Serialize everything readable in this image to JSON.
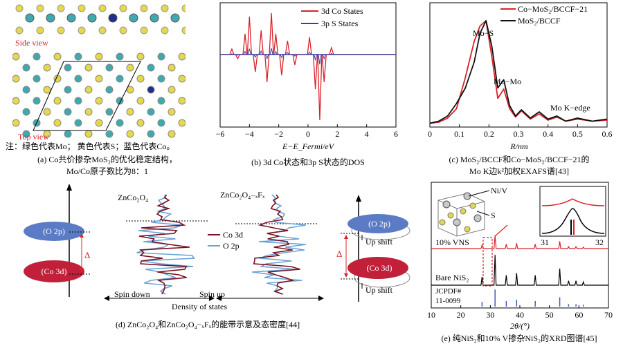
{
  "panel_a": {
    "side_label": "Side view",
    "top_label": "Top view",
    "note": "注：绿色代表Mo；   黄色代表S；蓝色代表Co。",
    "caption_line1": "(a) Co共价掺杂MoS₂的优化稳定结构，",
    "caption_line2": "Mo/Co原子数比为8：1"
  },
  "panel_b": {
    "caption": "(b) 3d Co状态和3p S状态的DOS",
    "xlabel": "E−E_Fermi/eV",
    "legend": [
      "3d Co States",
      "3p S States"
    ],
    "xticks": [
      "−6",
      "−4",
      "−2",
      "0",
      "2",
      "4",
      "6"
    ]
  },
  "panel_c": {
    "caption_line1": "(c) MoS₂/BCCF和Co−MoS₂/BCCF−21的",
    "caption_line2": "Mo K边k²加权EXAFS谱[43]",
    "legend": [
      "Co−MoS₂/BCCF−21",
      "MoS₂/BCCF"
    ],
    "ann_mos": "Mo−S",
    "ann_momo": "Mo−Mo",
    "ann_edge": "Mo K−edge",
    "xlabel": "R/nm",
    "xticks": [
      "0",
      "0.1",
      "0.2",
      "0.3",
      "0.4",
      "0.5",
      "0.6"
    ]
  },
  "panel_d": {
    "caption": "(d) ZnCo₂O₄和ZnCo₂O₄−ₓFₓ的能带示意及态密度[44]",
    "title_left": "ZnCo₂O₄",
    "title_right": "ZnCo₂O₄₋ₓFₓ",
    "legend": [
      "Co 3d",
      "O 2p"
    ],
    "o2p": "(O 2p)",
    "co3d": "(Co 3d)",
    "delta": "Δ",
    "spin_down": "Spin down",
    "spin_up": "Spin up",
    "dos_label": "Density of states",
    "up_shift": "Up shift"
  },
  "panel_e": {
    "caption": "(e) 纯NiS₂和10% V掺杂NiS₂的XRD图谱[45]",
    "label_niv": "Ni/V",
    "label_s": "S",
    "label_vns": "10% VNS",
    "label_bare": "Bare NiS₂",
    "label_jcpdf1": "JCPDF#",
    "label_jcpdf2": "11-0099",
    "inset_x1": "31",
    "inset_x2": "32",
    "xlabel": "2θ/(°)",
    "xticks": [
      "10",
      "20",
      "30",
      "40",
      "50",
      "60",
      "70"
    ]
  },
  "chart_data": [
    {
      "type": "line",
      "panel": "b",
      "xlabel": "E−E_Fermi/eV",
      "xlim": [
        -6,
        6
      ],
      "series": [
        {
          "name": "3d Co States",
          "color": "#d8232a"
        },
        {
          "name": "3p S States",
          "color": "#3c3ca8"
        }
      ]
    },
    {
      "type": "line",
      "panel": "c",
      "xlabel": "R/nm",
      "xlim": [
        0,
        0.6
      ],
      "series": [
        {
          "name": "Co−MoS₂/BCCF−21",
          "color": "#d8232a",
          "x": [
            0.0,
            0.03,
            0.06,
            0.09,
            0.12,
            0.15,
            0.17,
            0.19,
            0.21,
            0.23,
            0.25,
            0.27,
            0.29,
            0.31,
            0.34,
            0.37,
            0.4,
            0.43,
            0.46,
            0.5,
            0.55,
            0.6
          ],
          "y": [
            0.01,
            0.02,
            0.06,
            0.15,
            0.45,
            0.8,
            0.95,
            1.0,
            0.65,
            0.25,
            0.34,
            0.15,
            0.07,
            0.13,
            0.05,
            0.1,
            0.04,
            0.07,
            0.03,
            0.05,
            0.03,
            0.04
          ]
        },
        {
          "name": "MoS₂/BCCF",
          "color": "#111111",
          "x": [
            0.0,
            0.03,
            0.06,
            0.09,
            0.12,
            0.15,
            0.17,
            0.19,
            0.21,
            0.23,
            0.25,
            0.27,
            0.29,
            0.31,
            0.34,
            0.37,
            0.4,
            0.43,
            0.46,
            0.5,
            0.55,
            0.6
          ],
          "y": [
            0.01,
            0.03,
            0.08,
            0.2,
            0.35,
            0.6,
            0.88,
            1.0,
            0.75,
            0.35,
            0.43,
            0.18,
            0.08,
            0.14,
            0.06,
            0.12,
            0.05,
            0.08,
            0.03,
            0.06,
            0.03,
            0.05
          ]
        }
      ]
    },
    {
      "type": "line",
      "panel": "e",
      "xlabel": "2θ/(°)",
      "xlim": [
        10,
        70
      ],
      "peaks_2theta": [
        27.2,
        31.6,
        35.4,
        38.9,
        45.2,
        53.5,
        56.5,
        59.0,
        61.5
      ]
    }
  ]
}
